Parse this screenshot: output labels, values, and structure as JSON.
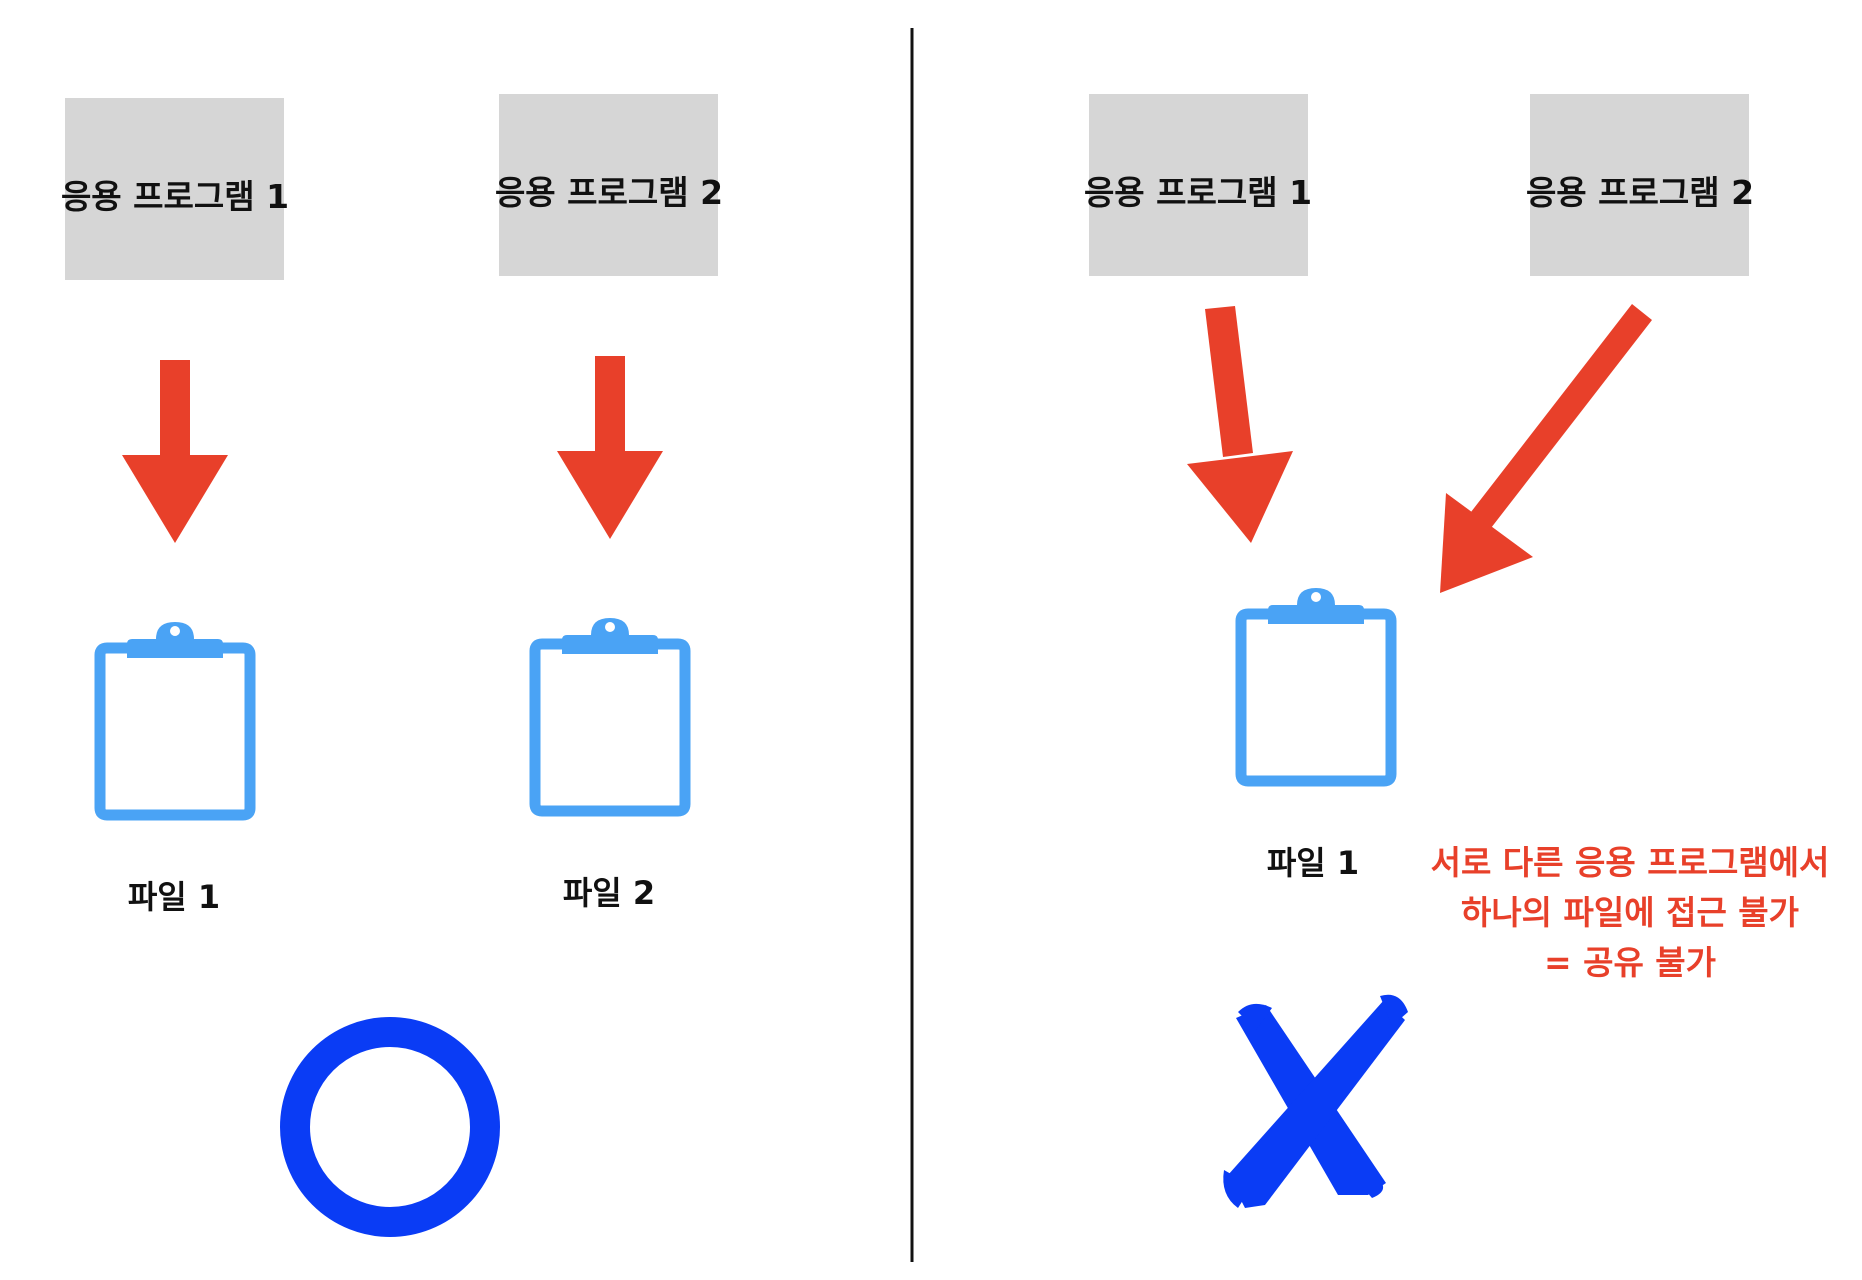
{
  "colors": {
    "app_box": "#d6d6d6",
    "arrow": "#e8402a",
    "clipboard": "#4aa3f5",
    "mark": "#0a3cf5",
    "note_text": "#e8402a",
    "divider": "#111111"
  },
  "left_panel": {
    "apps": [
      {
        "label": "응용 프로그램 1"
      },
      {
        "label": "응용 프로그램 2"
      }
    ],
    "files": [
      {
        "label": "파일 1",
        "icon": "clipboard-icon"
      },
      {
        "label": "파일 2",
        "icon": "clipboard-icon"
      }
    ],
    "result_mark": "circle-o-icon"
  },
  "right_panel": {
    "apps": [
      {
        "label": "응용 프로그램 1"
      },
      {
        "label": "응용 프로그램 2"
      }
    ],
    "file": {
      "label": "파일 1",
      "icon": "clipboard-icon"
    },
    "note_lines": [
      "서로 다른 응용 프로그램에서",
      "하나의 파일에 접근 불가",
      "= 공유 불가"
    ],
    "result_mark": "cross-x-icon"
  }
}
